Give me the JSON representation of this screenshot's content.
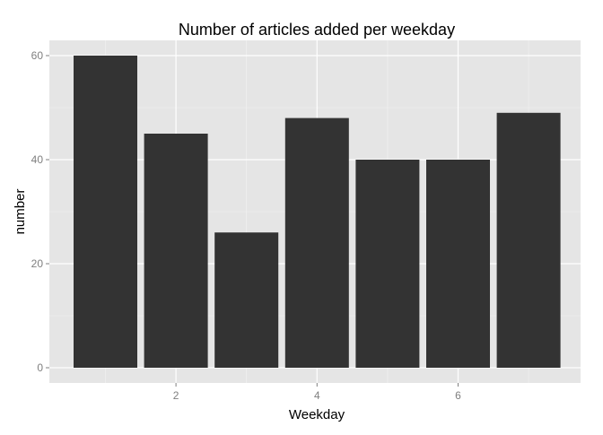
{
  "chart_data": {
    "type": "bar",
    "title": "Number of articles added per weekday",
    "xlabel": "Weekday",
    "ylabel": "number",
    "x": [
      1,
      2,
      3,
      4,
      5,
      6,
      7
    ],
    "values": [
      60,
      45,
      26,
      48,
      40,
      40,
      49
    ],
    "xlim": [
      0.5,
      7.5
    ],
    "ylim": [
      0,
      62
    ],
    "x_ticks": [
      2,
      4,
      6
    ],
    "y_ticks": [
      0,
      20,
      40,
      60
    ],
    "grid": true,
    "colors": {
      "bar": "#333333",
      "panel_background": "#e5e5e5",
      "grid_major": "#ffffff",
      "grid_minor": "#f2f2f2",
      "tick_label": "#7f7f7f"
    }
  }
}
